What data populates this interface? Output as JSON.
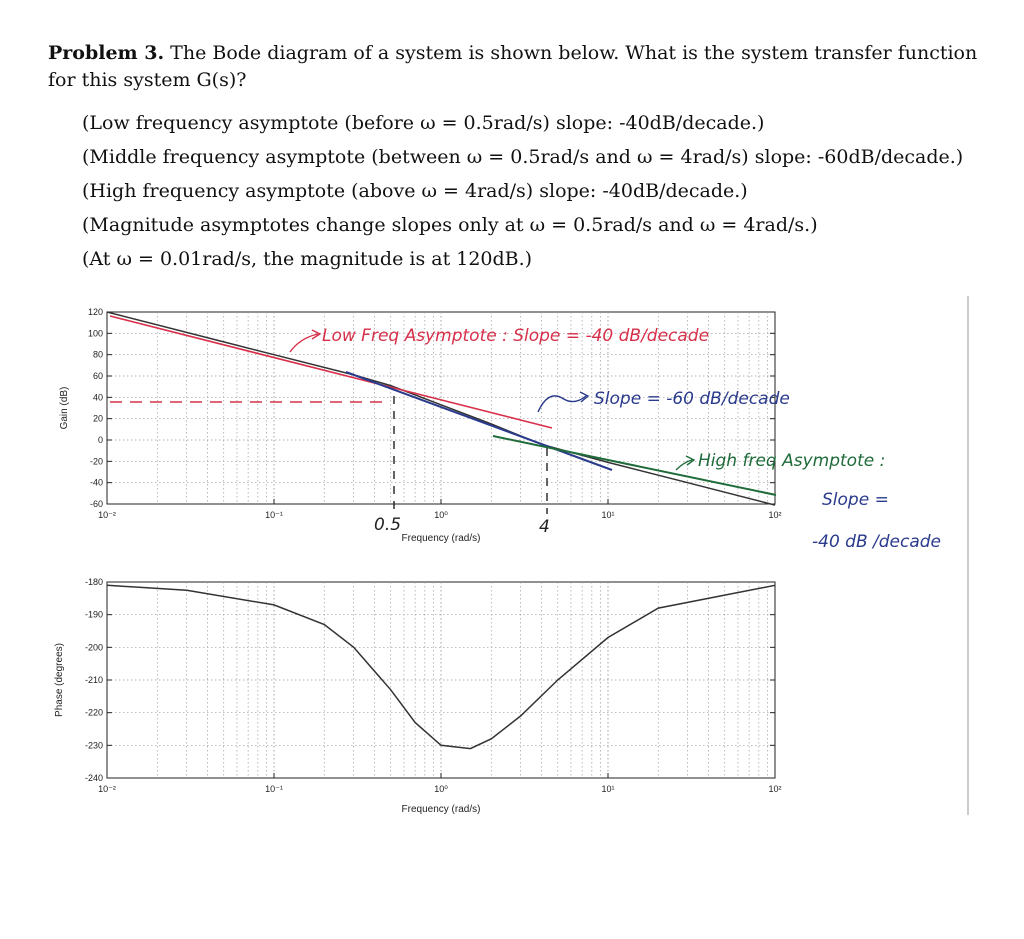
{
  "problem": {
    "heading": "Problem 3.",
    "statement": "The Bode diagram of a system is shown below. What is the system transfer function for this system G(s)?",
    "notes": [
      "(Low frequency asymptote (before ω = 0.5rad/s) slope: -40dB/decade.)",
      "(Middle frequency asymptote (between ω = 0.5rad/s and ω = 4rad/s) slope: -60dB/decade.)",
      "(High frequency asymptote (above ω = 4rad/s) slope: -40dB/decade.)",
      "(Magnitude asymptotes change slopes only at ω = 0.5rad/s and ω = 4rad/s.)",
      "(At ω = 0.01rad/s, the magnitude is at 120dB.)"
    ]
  },
  "magnitude_plot": {
    "ylabel": "Gain (dB)",
    "xlabel": "Frequency (rad/s)",
    "yticks": [
      "120",
      "100",
      "80",
      "60",
      "40",
      "20",
      "0",
      "-20",
      "-40",
      "-60"
    ],
    "xticks": [
      "10⁻²",
      "10⁻¹",
      "10⁰",
      "10¹",
      "10²"
    ]
  },
  "phase_plot": {
    "ylabel": "Phase (degrees)",
    "xlabel": "Frequency (rad/s)",
    "yticks": [
      "-180",
      "-190",
      "-200",
      "-210",
      "-220",
      "-230",
      "-240"
    ],
    "xticks": [
      "10⁻²",
      "10⁻¹",
      "10⁰",
      "10¹",
      "10²"
    ]
  },
  "annotations": {
    "low_freq": "Low Freq Asymptote : Slope = -40 dB/decade",
    "mid_slope": "Slope = -60 dB/decade",
    "high_freq_line1": "High freq Asymptote :",
    "high_freq_line2": "Slope =",
    "high_freq_line3": "-40 dB /decade",
    "corner1": "0.5",
    "corner2": "4"
  },
  "colors": {
    "red": "#d8304a",
    "green": "#1f6b3a",
    "blue": "#2a3a8c",
    "curve": "#333333"
  },
  "chart_data": [
    {
      "type": "line",
      "title": "",
      "xlabel": "Frequency (rad/s)",
      "ylabel": "Gain (dB)",
      "xscale": "log",
      "xlim": [
        0.01,
        100
      ],
      "ylim": [
        -60,
        120
      ],
      "grid": true,
      "series": [
        {
          "x": [
            0.01,
            0.05,
            0.1,
            0.3,
            0.5,
            1,
            2,
            4,
            10,
            30,
            100
          ],
          "values": [
            120,
            92,
            80,
            61,
            51,
            33,
            15,
            -4,
            -21,
            -40,
            -61
          ]
        }
      ]
    },
    {
      "type": "line",
      "title": "",
      "xlabel": "Frequency (rad/s)",
      "ylabel": "Phase (degrees)",
      "xscale": "log",
      "xlim": [
        0.01,
        100
      ],
      "ylim": [
        -240,
        -180
      ],
      "grid": true,
      "series": [
        {
          "x": [
            0.01,
            0.03,
            0.1,
            0.2,
            0.3,
            0.5,
            0.7,
            1,
            1.5,
            2,
            3,
            5,
            10,
            20,
            50,
            100
          ],
          "values": [
            -181,
            -182.5,
            -187,
            -193,
            -200,
            -213,
            -223,
            -230,
            -231,
            -228,
            -221,
            -210,
            -197,
            -188,
            -184,
            -181
          ]
        }
      ]
    }
  ]
}
